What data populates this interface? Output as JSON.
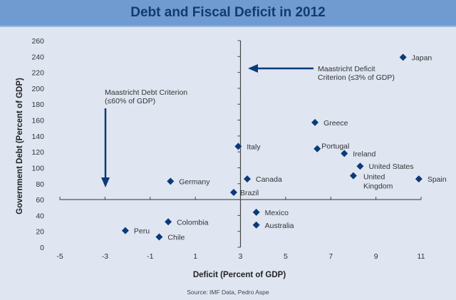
{
  "chart_data": {
    "type": "scatter",
    "title": "Debt and Fiscal Deficit in 2012",
    "xlabel": "Deficit (Percent of GDP)",
    "ylabel": "Government Debt (Percent of GDP)",
    "xlim": [
      -5,
      11
    ],
    "ylim": [
      0,
      260
    ],
    "xticks": [
      -5,
      -3,
      -1,
      1,
      3,
      5,
      7,
      9,
      11
    ],
    "yticks": [
      0,
      20,
      40,
      60,
      80,
      100,
      120,
      140,
      160,
      180,
      200,
      220,
      240,
      260
    ],
    "axes_cross": {
      "x": 3,
      "y": 60
    },
    "grid": false,
    "marker_color": "#0b3a78",
    "points": [
      {
        "label": "Japan",
        "x": 10.2,
        "y": 239
      },
      {
        "label": "Greece",
        "x": 6.3,
        "y": 157
      },
      {
        "label": "Italy",
        "x": 2.9,
        "y": 127
      },
      {
        "label": "Portugal",
        "x": 6.4,
        "y": 124
      },
      {
        "label": "Ireland",
        "x": 7.6,
        "y": 118
      },
      {
        "label": "United States",
        "x": 8.3,
        "y": 102
      },
      {
        "label": "United Kingdom",
        "x": 8.0,
        "y": 90
      },
      {
        "label": "Spain",
        "x": 10.9,
        "y": 86
      },
      {
        "label": "Canada",
        "x": 3.3,
        "y": 86
      },
      {
        "label": "Germany",
        "x": -0.1,
        "y": 83
      },
      {
        "label": "Brazil",
        "x": 2.7,
        "y": 69
      },
      {
        "label": "Mexico",
        "x": 3.7,
        "y": 44
      },
      {
        "label": "Australia",
        "x": 3.7,
        "y": 28
      },
      {
        "label": "Colombia",
        "x": -0.2,
        "y": 32
      },
      {
        "label": "Peru",
        "x": -2.1,
        "y": 21
      },
      {
        "label": "Chile",
        "x": -0.6,
        "y": 13
      }
    ],
    "annotations": [
      {
        "text": [
          "Maastricht Deficit",
          "Criterion (≤3% of GDP)"
        ]
      },
      {
        "text": [
          "Maastricht Debt Criterion",
          "(≤60% of GDP)"
        ]
      }
    ],
    "source": "Source: IMF Data, Pedro Aspe"
  }
}
